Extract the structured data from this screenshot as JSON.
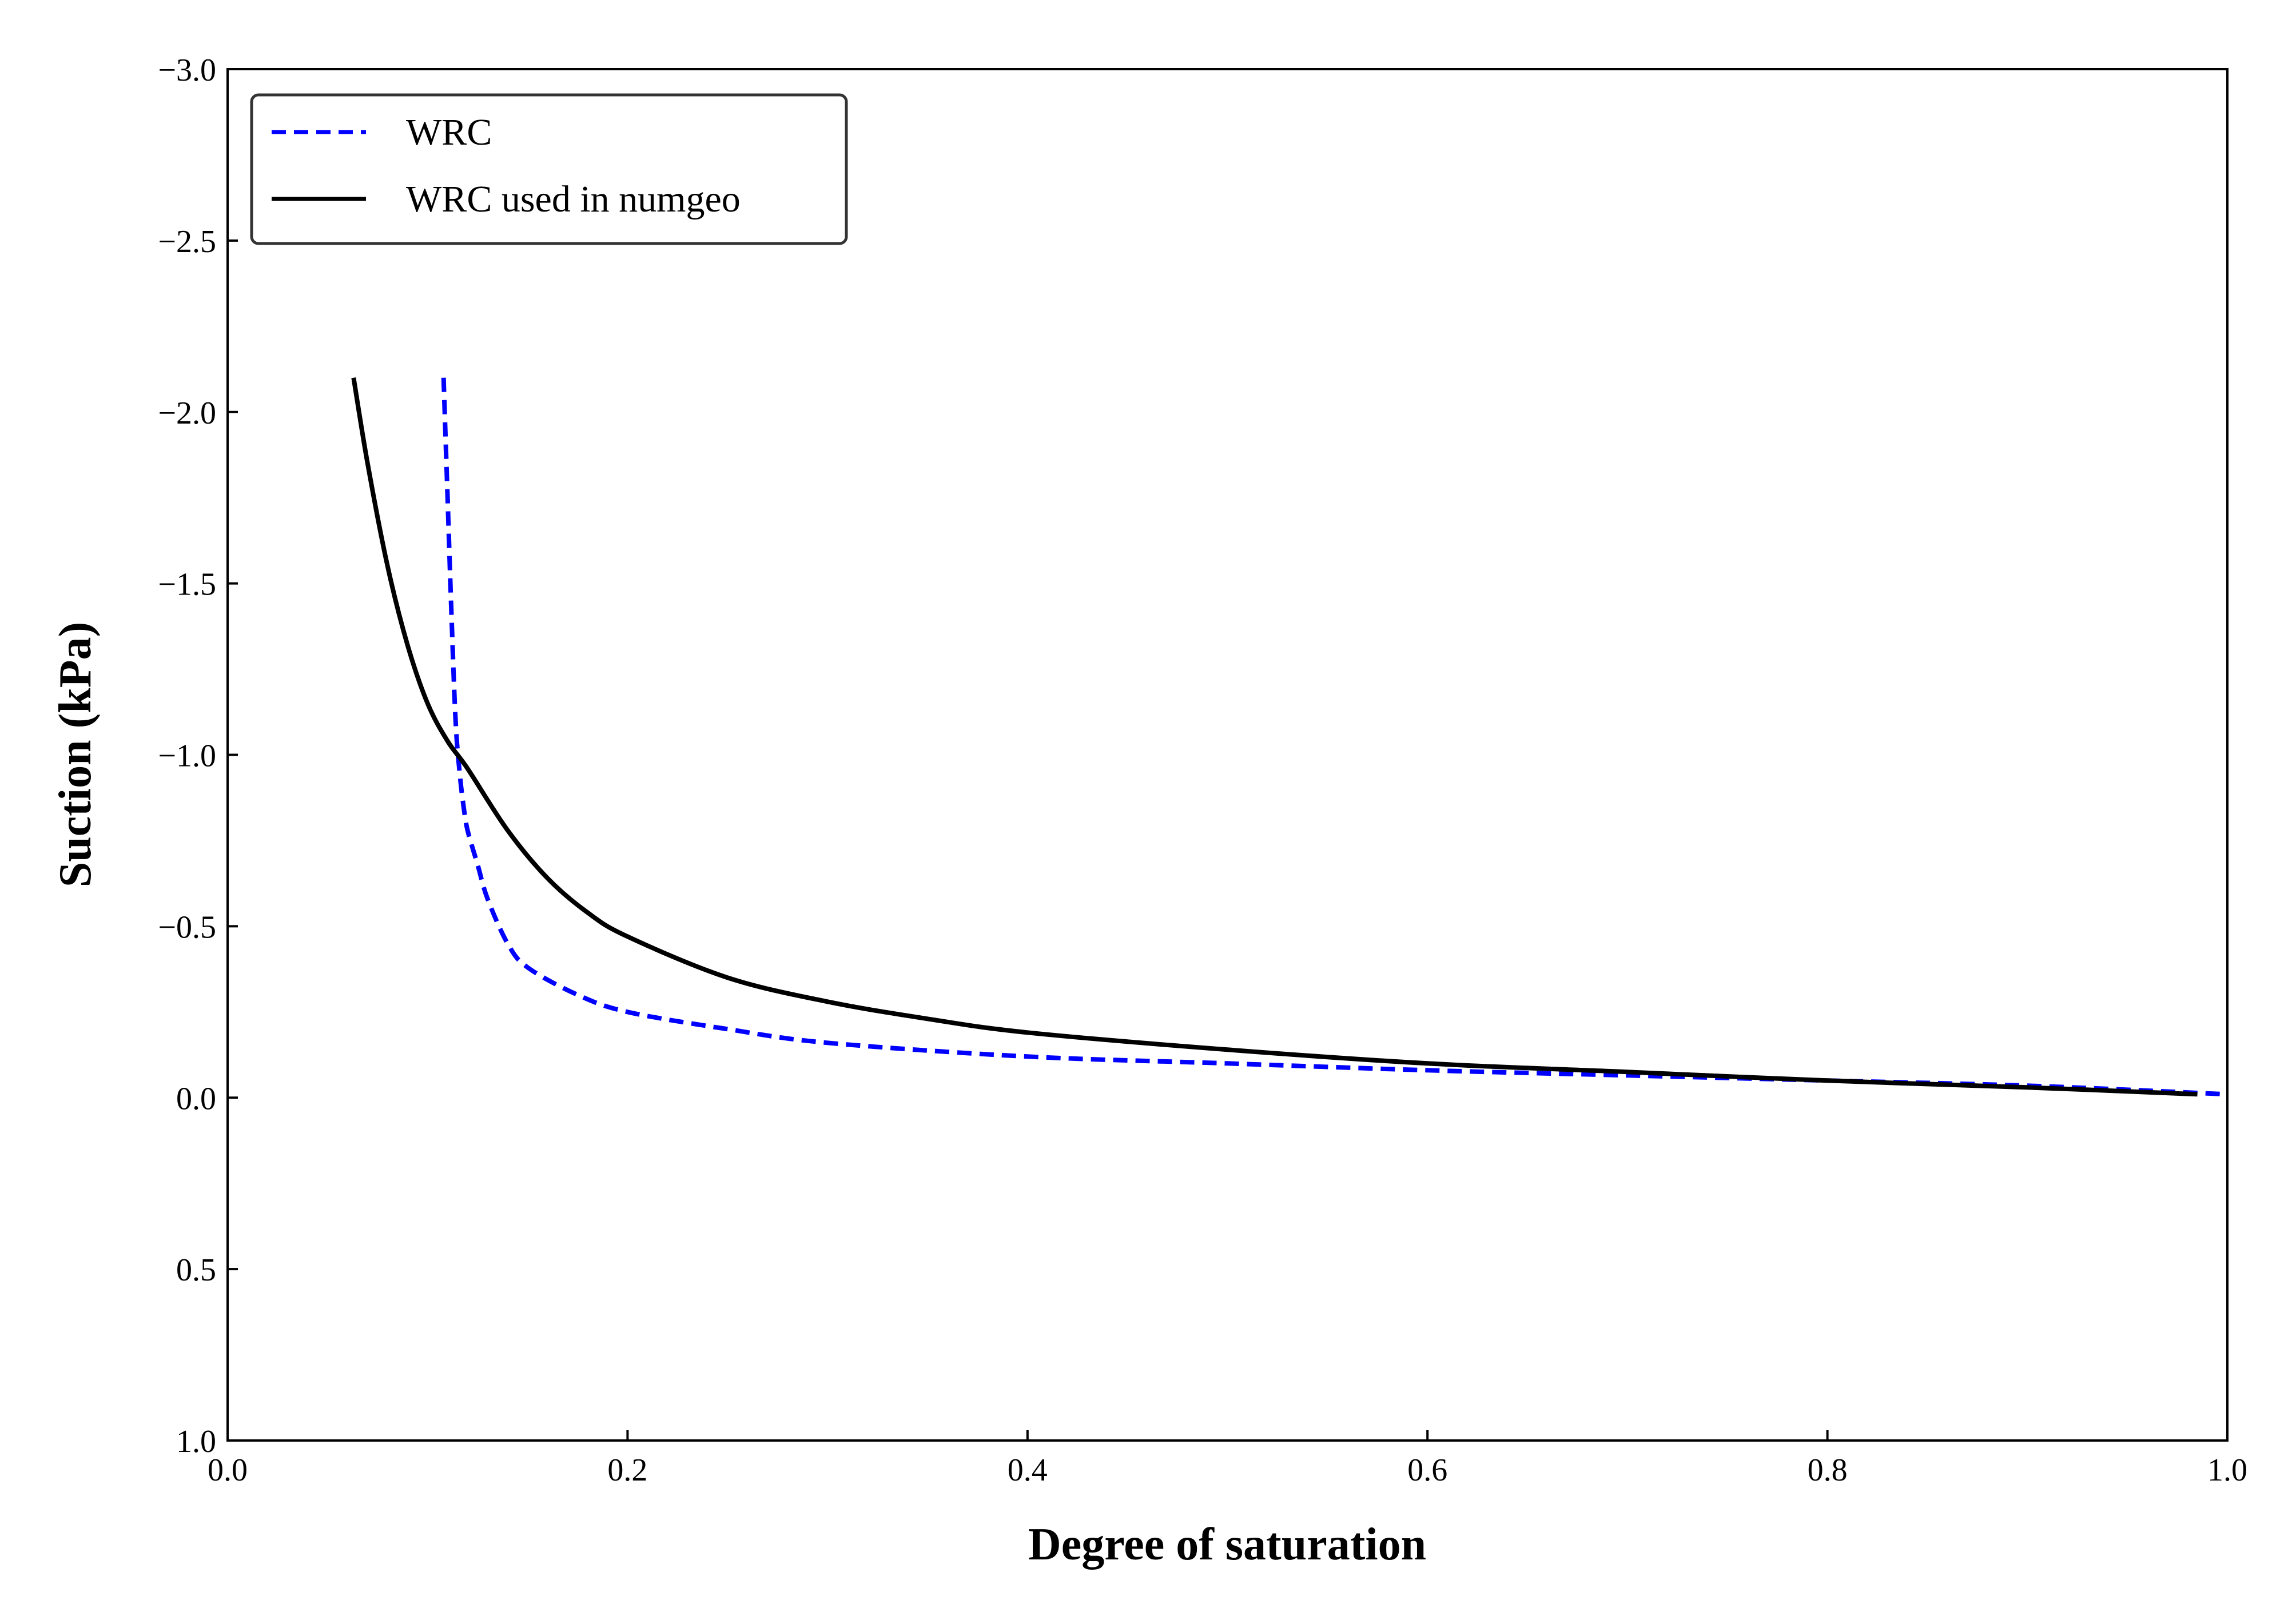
{
  "chart_data": {
    "type": "line",
    "title": "",
    "xlabel": "Degree of saturation",
    "ylabel": "Suction (kPa)",
    "xlim": [
      0.0,
      1.0
    ],
    "ylim": [
      1.0,
      -3.0
    ],
    "y_axis_inverted": true,
    "grid": false,
    "legend_position": "top-left",
    "xticks": [
      0.0,
      0.2,
      0.4,
      0.6,
      0.8,
      1.0
    ],
    "xtick_labels": [
      "0.0",
      "0.2",
      "0.4",
      "0.6",
      "0.8",
      "1.0"
    ],
    "yticks": [
      -3.0,
      -2.5,
      -2.0,
      -1.5,
      -1.0,
      -0.5,
      0.0,
      0.5,
      1.0
    ],
    "ytick_labels": [
      "−3.0",
      "−2.5",
      "−2.0",
      "−1.5",
      "−1.0",
      "−0.5",
      "0.0",
      "0.5",
      "1.0"
    ],
    "series": [
      {
        "name": "WRC",
        "color": "#0000ff",
        "style": "dashed",
        "x": [
          0.108,
          0.11,
          0.112,
          0.114,
          0.116,
          0.118,
          0.12,
          0.125,
          0.13,
          0.14,
          0.15,
          0.175,
          0.2,
          0.25,
          0.3,
          0.4,
          0.5,
          0.6,
          0.7,
          0.8,
          0.9,
          1.0
        ],
        "y": [
          -2.1,
          -1.75,
          -1.4,
          -1.1,
          -0.95,
          -0.85,
          -0.78,
          -0.68,
          -0.58,
          -0.45,
          -0.38,
          -0.3,
          -0.25,
          -0.2,
          -0.16,
          -0.12,
          -0.1,
          -0.08,
          -0.065,
          -0.05,
          -0.035,
          -0.01
        ]
      },
      {
        "name": "WRC used in numgeo",
        "color": "#000000",
        "style": "solid",
        "x": [
          0.063,
          0.07,
          0.08,
          0.09,
          0.1,
          0.11,
          0.12,
          0.14,
          0.16,
          0.18,
          0.2,
          0.25,
          0.3,
          0.35,
          0.4,
          0.5,
          0.6,
          0.7,
          0.8,
          0.9,
          0.985
        ],
        "y": [
          -2.1,
          -1.85,
          -1.55,
          -1.32,
          -1.15,
          -1.04,
          -0.96,
          -0.78,
          -0.64,
          -0.54,
          -0.47,
          -0.35,
          -0.28,
          -0.23,
          -0.19,
          -0.14,
          -0.1,
          -0.075,
          -0.05,
          -0.03,
          -0.01
        ]
      }
    ]
  }
}
